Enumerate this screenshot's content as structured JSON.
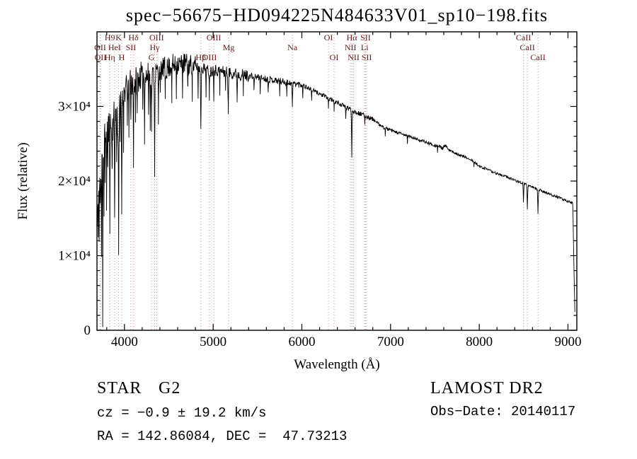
{
  "annotations": {
    "class_label": "STAR",
    "subclass": "G2",
    "cz_line": "cz = −0.9 ± 19.2 km/s",
    "radec_line": "RA = 142.86084, DEC =  47.73213",
    "survey": "LAMOST DR2",
    "obs_date": "Obs−Date: 20140117"
  },
  "chart_data": {
    "type": "line",
    "title": "spec−56675−HD094225N484633V01_sp10−198.fits",
    "xlabel": "Wavelength (Å)",
    "ylabel": "Flux (relative)",
    "xlim": [
      3690,
      9100
    ],
    "ylim": [
      0,
      40000
    ],
    "data_range": [
      3694,
      9078
    ],
    "xticks": [
      4000,
      5000,
      6000,
      7000,
      8000,
      9000
    ],
    "xtick_labels": [
      "4000",
      "5000",
      "6000",
      "7000",
      "8000",
      "9000"
    ],
    "yticks": [
      0,
      10000,
      20000,
      30000
    ],
    "ytick_labels": [
      "0",
      "1×10⁴",
      "2×10⁴",
      "3×10⁴"
    ],
    "x_minor_step": 200,
    "y_minor_step": 2000,
    "grid": false,
    "line_color": "#000000",
    "marker_line_color": "#cc8888",
    "marker_label_color": "#5c1a1a",
    "continuum_anchors": [
      [
        3694,
        14000
      ],
      [
        3705,
        20000
      ],
      [
        3715,
        17000
      ],
      [
        3725,
        23000
      ],
      [
        3735,
        19000
      ],
      [
        3745,
        25000
      ],
      [
        3760,
        22000
      ],
      [
        3775,
        26000
      ],
      [
        3790,
        27500
      ],
      [
        3810,
        26500
      ],
      [
        3830,
        27500
      ],
      [
        3850,
        27000
      ],
      [
        3875,
        28000
      ],
      [
        3900,
        28500
      ],
      [
        3925,
        28000
      ],
      [
        3950,
        29500
      ],
      [
        3975,
        30500
      ],
      [
        4000,
        32000
      ],
      [
        4050,
        33000
      ],
      [
        4100,
        33300
      ],
      [
        4150,
        33800
      ],
      [
        4200,
        34200
      ],
      [
        4250,
        34000
      ],
      [
        4300,
        34200
      ],
      [
        4330,
        34300
      ],
      [
        4360,
        34600
      ],
      [
        4390,
        35000
      ],
      [
        4420,
        34900
      ],
      [
        4450,
        35200
      ],
      [
        4480,
        35000
      ],
      [
        4510,
        35400
      ],
      [
        4540,
        35600
      ],
      [
        4570,
        35400
      ],
      [
        4600,
        35800
      ],
      [
        4640,
        35600
      ],
      [
        4680,
        35800
      ],
      [
        4720,
        35500
      ],
      [
        4760,
        35600
      ],
      [
        4800,
        35300
      ],
      [
        4840,
        35100
      ],
      [
        4880,
        35200
      ],
      [
        4920,
        34900
      ],
      [
        4960,
        34700
      ],
      [
        5000,
        34900
      ],
      [
        5100,
        34700
      ],
      [
        5200,
        34500
      ],
      [
        5300,
        34300
      ],
      [
        5400,
        34100
      ],
      [
        5500,
        33900
      ],
      [
        5600,
        33700
      ],
      [
        5700,
        33500
      ],
      [
        5800,
        33300
      ],
      [
        5900,
        33100
      ],
      [
        6000,
        32900
      ],
      [
        6100,
        32300
      ],
      [
        6200,
        31700
      ],
      [
        6300,
        31100
      ],
      [
        6400,
        30500
      ],
      [
        6500,
        29900
      ],
      [
        6600,
        29300
      ],
      [
        6700,
        28800
      ],
      [
        6800,
        28300
      ],
      [
        6900,
        27300
      ],
      [
        7000,
        26800
      ],
      [
        7100,
        26400
      ],
      [
        7200,
        26000
      ],
      [
        7300,
        25600
      ],
      [
        7400,
        25200
      ],
      [
        7500,
        24800
      ],
      [
        7550,
        24600
      ],
      [
        7590,
        24400
      ],
      [
        7620,
        24800
      ],
      [
        7650,
        24200
      ],
      [
        7700,
        23900
      ],
      [
        7800,
        23400
      ],
      [
        7900,
        22900
      ],
      [
        8000,
        22000
      ],
      [
        8100,
        21500
      ],
      [
        8200,
        21000
      ],
      [
        8300,
        20600
      ],
      [
        8400,
        20100
      ],
      [
        8500,
        19700
      ],
      [
        8600,
        19200
      ],
      [
        8700,
        18700
      ],
      [
        8800,
        18200
      ],
      [
        8900,
        17800
      ],
      [
        8950,
        17500
      ],
      [
        9000,
        17300
      ],
      [
        9055,
        17000
      ],
      [
        9065,
        10000
      ],
      [
        9075,
        4200
      ]
    ],
    "absorption_features": [
      [
        3705,
        8000,
        5
      ],
      [
        3715,
        5000,
        4
      ],
      [
        3727,
        7000,
        6
      ],
      [
        3741,
        11000,
        5
      ],
      [
        3755,
        23000,
        4
      ],
      [
        3770,
        9000,
        5
      ],
      [
        3782,
        6000,
        4
      ],
      [
        3798,
        10000,
        6
      ],
      [
        3812,
        5000,
        4
      ],
      [
        3835,
        12000,
        6
      ],
      [
        3860,
        7000,
        5
      ],
      [
        3889,
        13000,
        6
      ],
      [
        3912,
        6000,
        4
      ],
      [
        3934,
        16500,
        7
      ],
      [
        3952,
        5000,
        4
      ],
      [
        3969,
        14000,
        7
      ],
      [
        3990,
        6000,
        4
      ],
      [
        4032,
        5500,
        4
      ],
      [
        4050,
        8000,
        4
      ],
      [
        4072,
        6500,
        5
      ],
      [
        4102,
        10500,
        7
      ],
      [
        4126,
        4500,
        4
      ],
      [
        4144,
        6000,
        4
      ],
      [
        4205,
        4500,
        4
      ],
      [
        4226,
        7500,
        5
      ],
      [
        4272,
        5000,
        4
      ],
      [
        4290,
        5500,
        4
      ],
      [
        4305,
        6500,
        7
      ],
      [
        4340,
        13000,
        7
      ],
      [
        4383,
        6500,
        5
      ],
      [
        4405,
        4500,
        4
      ],
      [
        4460,
        4000,
        4
      ],
      [
        4534,
        4000,
        4
      ],
      [
        4585,
        3500,
        4
      ],
      [
        4655,
        3500,
        4
      ],
      [
        4715,
        3500,
        4
      ],
      [
        4765,
        3500,
        4
      ],
      [
        4830,
        4000,
        4
      ],
      [
        4861,
        8800,
        8
      ],
      [
        4920,
        3500,
        4
      ],
      [
        4957,
        3500,
        4
      ],
      [
        5007,
        3500,
        4
      ],
      [
        5075,
        3000,
        4
      ],
      [
        5140,
        3000,
        4
      ],
      [
        5170,
        5000,
        9
      ],
      [
        5270,
        3500,
        6
      ],
      [
        5340,
        2500,
        4
      ],
      [
        5460,
        2200,
        4
      ],
      [
        5530,
        2000,
        4
      ],
      [
        5620,
        2000,
        4
      ],
      [
        5750,
        1800,
        4
      ],
      [
        5830,
        1800,
        4
      ],
      [
        5893,
        3200,
        8
      ],
      [
        6010,
        1500,
        4
      ],
      [
        6110,
        1500,
        4
      ],
      [
        6300,
        1400,
        5
      ],
      [
        6363,
        1300,
        4
      ],
      [
        6495,
        1800,
        5
      ],
      [
        6563,
        6200,
        8
      ],
      [
        6710,
        1100,
        4
      ],
      [
        6940,
        1000,
        4
      ],
      [
        7190,
        900,
        4
      ],
      [
        7530,
        800,
        4
      ],
      [
        7940,
        700,
        4
      ],
      [
        8498,
        2600,
        8
      ],
      [
        8542,
        3200,
        9
      ],
      [
        8662,
        3200,
        9
      ]
    ],
    "noise_segments": [
      {
        "range": [
          3690,
          3960
        ],
        "amplitude": 2600
      },
      {
        "range": [
          3960,
          4300
        ],
        "amplitude": 1900
      },
      {
        "range": [
          4300,
          4800
        ],
        "amplitude": 1500
      },
      {
        "range": [
          4800,
          5400
        ],
        "amplitude": 800
      },
      {
        "range": [
          5400,
          6000
        ],
        "amplitude": 450
      },
      {
        "range": [
          6000,
          6800
        ],
        "amplitude": 300
      },
      {
        "range": [
          6800,
          7600
        ],
        "amplitude": 220
      },
      {
        "range": [
          7600,
          9080
        ],
        "amplitude": 170
      }
    ],
    "spectral_line_markers": [
      {
        "wavelength": 3726,
        "label": "OII",
        "row": 2
      },
      {
        "wavelength": 3729,
        "label": "OII",
        "row": 3
      },
      {
        "wavelength": 3835,
        "label": "H9",
        "row": 1
      },
      {
        "wavelength": 3835,
        "label": "Hη",
        "row": 3
      },
      {
        "wavelength": 3889,
        "label": "HeI",
        "row": 2
      },
      {
        "wavelength": 3934,
        "label": "K",
        "row": 1
      },
      {
        "wavelength": 3969,
        "label": "H",
        "row": 3
      },
      {
        "wavelength": 4072,
        "label": "SII",
        "row": 2
      },
      {
        "wavelength": 4102,
        "label": "Hδ",
        "row": 1
      },
      {
        "wavelength": 4305,
        "label": "G",
        "row": 3
      },
      {
        "wavelength": 4340,
        "label": "Hγ",
        "row": 2
      },
      {
        "wavelength": 4363,
        "label": "OIII",
        "row": 1
      },
      {
        "wavelength": 4861,
        "label": "Hβ",
        "row": 3
      },
      {
        "wavelength": 4959,
        "label": "OIII",
        "row": 3
      },
      {
        "wavelength": 5007,
        "label": "OIII",
        "row": 1
      },
      {
        "wavelength": 5175,
        "label": "Mg",
        "row": 2
      },
      {
        "wavelength": 5893,
        "label": "Na",
        "row": 2
      },
      {
        "wavelength": 6300,
        "label": "OI",
        "row": 1
      },
      {
        "wavelength": 6363,
        "label": "OI",
        "row": 3
      },
      {
        "wavelength": 6548,
        "label": "NII",
        "row": 2
      },
      {
        "wavelength": 6563,
        "label": "Hα",
        "row": 1
      },
      {
        "wavelength": 6583,
        "label": "NII",
        "row": 3
      },
      {
        "wavelength": 6708,
        "label": "Li",
        "row": 2
      },
      {
        "wavelength": 6717,
        "label": "SII",
        "row": 1
      },
      {
        "wavelength": 6731,
        "label": "SII",
        "row": 3
      },
      {
        "wavelength": 8498,
        "label": "CaII",
        "row": 1
      },
      {
        "wavelength": 8542,
        "label": "CaII",
        "row": 2
      },
      {
        "wavelength": 8662,
        "label": "CaII",
        "row": 3
      }
    ]
  }
}
